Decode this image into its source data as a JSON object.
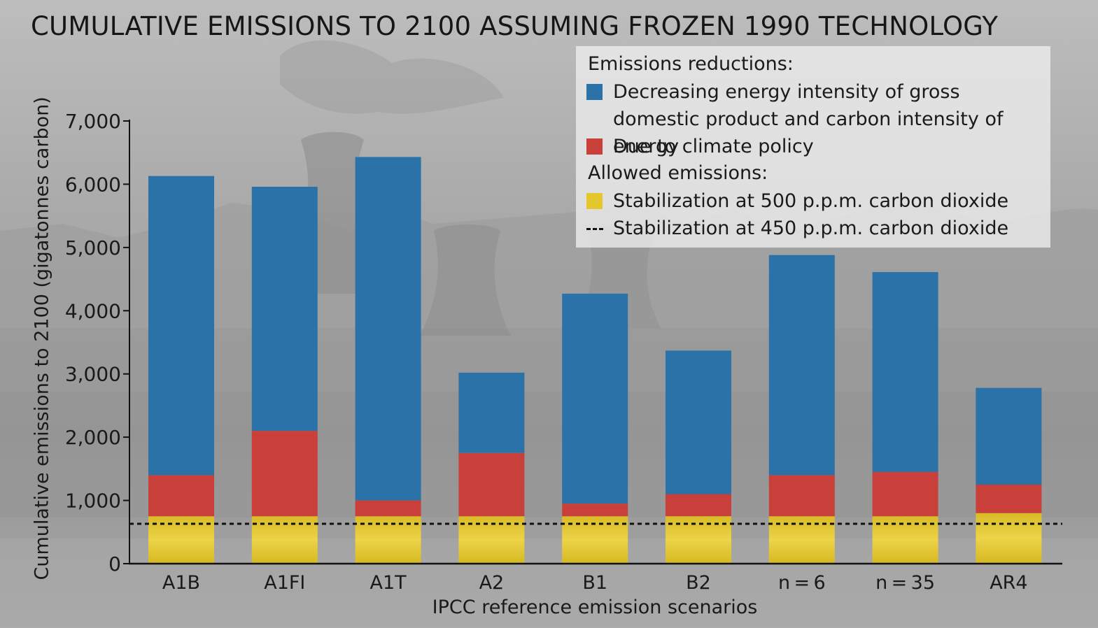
{
  "chart_data": {
    "type": "bar",
    "stacked": true,
    "title": "CUMULATIVE EMISSIONS TO 2100 ASSUMING FROZEN 1990 TECHNOLOGY",
    "xlabel": "IPCC reference emission scenarios",
    "ylabel": "Cumulative emissions to 2100 (gigatonnes carbon)",
    "categories": [
      "A1B",
      "A1FI",
      "A1T",
      "A2",
      "B1",
      "B2",
      "n = 6",
      "n = 35",
      "AR4"
    ],
    "ylim": [
      0,
      7000
    ],
    "yticks": [
      "0",
      "1,000",
      "2,000",
      "3,000",
      "4,000",
      "5,000",
      "6,000",
      "7,000"
    ],
    "ytick_values": [
      0,
      1000,
      2000,
      3000,
      4000,
      5000,
      6000,
      7000
    ],
    "grid": false,
    "legend_placement": "top-right",
    "legend": {
      "heading_reductions": "Emissions reductions:",
      "heading_allowed": "Allowed emissions:"
    },
    "series": [
      {
        "name": "Stabilization at 500 p.p.m. carbon dioxide",
        "color": "#e4c72c",
        "values": [
          750,
          750,
          750,
          750,
          750,
          750,
          750,
          750,
          800
        ]
      },
      {
        "name": "Due to climate policy",
        "color": "#c9403a",
        "values": [
          650,
          1350,
          250,
          1000,
          200,
          350,
          650,
          700,
          450
        ]
      },
      {
        "name": "Decreasing energy intensity of gross domestic product and carbon intensity of energy",
        "color": "#2a72a8",
        "values": [
          4730,
          3860,
          5430,
          1270,
          3320,
          2270,
          3480,
          3160,
          1530
        ]
      }
    ],
    "reference_line": {
      "name": "Stabilization at 450 p.p.m. carbon dioxide",
      "value": 630,
      "style": "dashed",
      "color": "#111111"
    }
  }
}
